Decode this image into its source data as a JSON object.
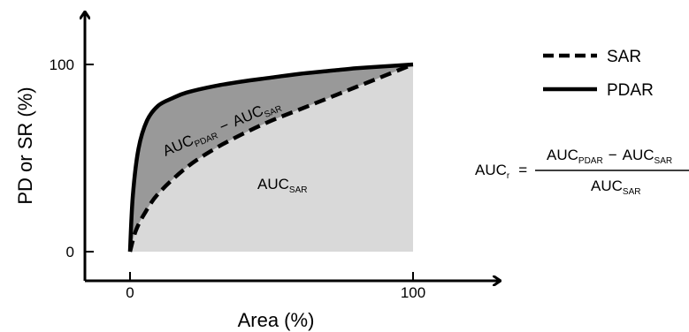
{
  "chart_data": {
    "type": "area",
    "xlabel": "Area (%)",
    "ylabel": "PD or SR (%)",
    "xlim": [
      0,
      100
    ],
    "ylim": [
      0,
      100
    ],
    "x_ticks": [
      "0",
      "100"
    ],
    "y_ticks": [
      "0",
      "100"
    ],
    "legend_position": "top-right",
    "series": [
      {
        "name": "SAR",
        "line_style": "dashed",
        "x": [
          0,
          2,
          5,
          10,
          20,
          30,
          40,
          50,
          60,
          70,
          80,
          90,
          100
        ],
        "y": [
          0,
          11,
          20,
          31,
          45,
          55,
          63,
          70,
          76,
          82,
          88,
          94,
          100
        ]
      },
      {
        "name": "PDAR",
        "line_style": "solid",
        "x": [
          0,
          1,
          3,
          6,
          10,
          15,
          20,
          30,
          40,
          50,
          60,
          70,
          80,
          90,
          100
        ],
        "y": [
          0,
          30,
          55,
          70,
          78,
          82,
          85,
          88.5,
          91,
          93,
          95,
          96.5,
          98,
          99,
          100
        ]
      }
    ],
    "annotations": {
      "auc_diff": {
        "main1": "AUC",
        "sub1": "PDAR",
        "op": "−",
        "main2": "AUC",
        "sub2": "SAR"
      },
      "auc_sar": {
        "main": "AUC",
        "sub": "SAR"
      },
      "formula": {
        "lhs_main": "AUC",
        "lhs_sub": "r",
        "eq": "=",
        "num_main1": "AUC",
        "num_sub1": "PDAR",
        "num_op": "−",
        "num_main2": "AUC",
        "num_sub2": "SAR",
        "den_main": "AUC",
        "den_sub": "SAR"
      }
    },
    "colors": {
      "between_curves_fill": "#999999",
      "under_sar_fill": "#d9d9d9",
      "lines": "#000000"
    }
  }
}
